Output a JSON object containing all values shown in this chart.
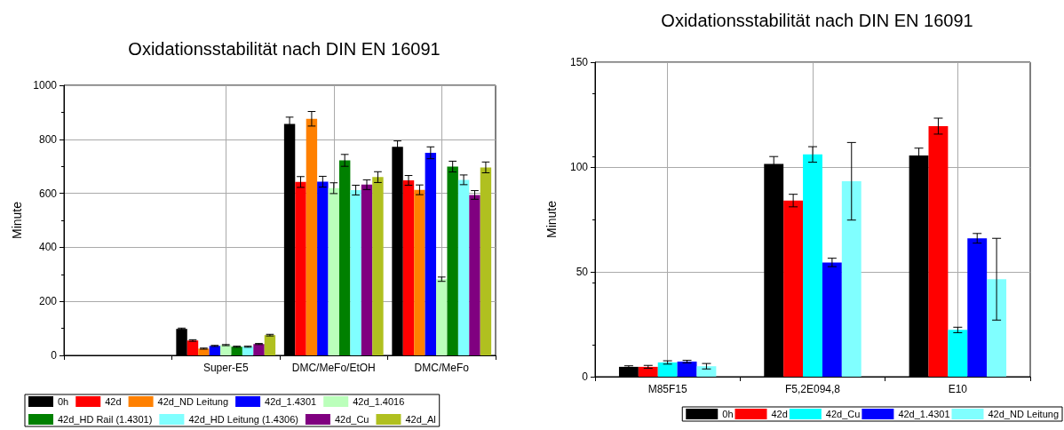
{
  "chart_data": [
    {
      "type": "bar",
      "title": "Oxidationsstabilität nach DIN EN 16091",
      "ylabel": "Minute",
      "categories": [
        null,
        "Super-E5",
        "DMC/MeFo/EtOH",
        "DMC/MeFo"
      ],
      "ylim": [
        0,
        1000
      ],
      "yticks": [
        0,
        200,
        400,
        600,
        800,
        1000
      ],
      "grid": true,
      "legend": "bottom",
      "series": [
        {
          "name": "0h",
          "color": "#000000",
          "values": [
            null,
            98,
            857,
            772
          ],
          "errors": [
            null,
            3,
            25,
            22
          ]
        },
        {
          "name": "42d",
          "color": "#ff0000",
          "values": [
            null,
            55,
            642,
            648
          ],
          "errors": [
            null,
            3,
            20,
            18
          ]
        },
        {
          "name": "42d_ND Leitung",
          "color": "#ff8000",
          "values": [
            null,
            25,
            876,
            613
          ],
          "errors": [
            null,
            2,
            27,
            18
          ]
        },
        {
          "name": "42d_1.4301",
          "color": "#0000ff",
          "values": [
            null,
            35,
            643,
            750
          ],
          "errors": [
            null,
            2,
            20,
            22
          ]
        },
        {
          "name": "42d_1.4016",
          "color": "#bbffbb",
          "values": [
            null,
            38,
            619,
            282
          ],
          "errors": [
            null,
            2,
            20,
            8
          ]
        },
        {
          "name": "42d_HD Rail (1.4301)",
          "color": "#008000",
          "values": [
            null,
            32,
            722,
            699
          ],
          "errors": [
            null,
            2,
            22,
            20
          ]
        },
        {
          "name": "42d_HD Leitung (1.4306)",
          "color": "#80ffff",
          "values": [
            null,
            32,
            612,
            650
          ],
          "errors": [
            null,
            2,
            18,
            18
          ]
        },
        {
          "name": "42d_Cu",
          "color": "#800080",
          "values": [
            null,
            42,
            632,
            594
          ],
          "errors": [
            null,
            2,
            18,
            16
          ]
        },
        {
          "name": "42d_Al",
          "color": "#b0c020",
          "values": [
            null,
            75,
            660,
            696
          ],
          "errors": [
            null,
            3,
            20,
            20
          ]
        }
      ]
    },
    {
      "type": "bar",
      "title": "Oxidationsstabilität nach DIN EN 16091",
      "ylabel": "Minute",
      "categories": [
        "M85F15",
        "F5,2E094,8",
        "E10"
      ],
      "ylim": [
        0,
        150
      ],
      "yticks": [
        0,
        50,
        100,
        150
      ],
      "grid": true,
      "legend": "bottom right",
      "series": [
        {
          "name": "0h",
          "color": "#000000",
          "values": [
            4.7,
            101.5,
            105.5
          ],
          "errors": [
            0.5,
            3.5,
            3.5
          ]
        },
        {
          "name": "42d",
          "color": "#ff0000",
          "values": [
            4.7,
            84,
            119.5
          ],
          "errors": [
            0.7,
            3,
            3.8
          ]
        },
        {
          "name": "42d_Cu",
          "color": "#00ffff",
          "values": [
            6.8,
            106,
            22.3
          ],
          "errors": [
            0.8,
            3.7,
            1.3
          ]
        },
        {
          "name": "42d_1.4301",
          "color": "#0000ff",
          "values": [
            7.2,
            54.5,
            66
          ],
          "errors": [
            0.6,
            2,
            2.3
          ]
        },
        {
          "name": "42d_ND Leitung",
          "color": "#80ffff",
          "values": [
            5,
            93.2,
            46.5
          ],
          "errors": [
            1.3,
            18.5,
            19.5
          ]
        }
      ]
    }
  ]
}
